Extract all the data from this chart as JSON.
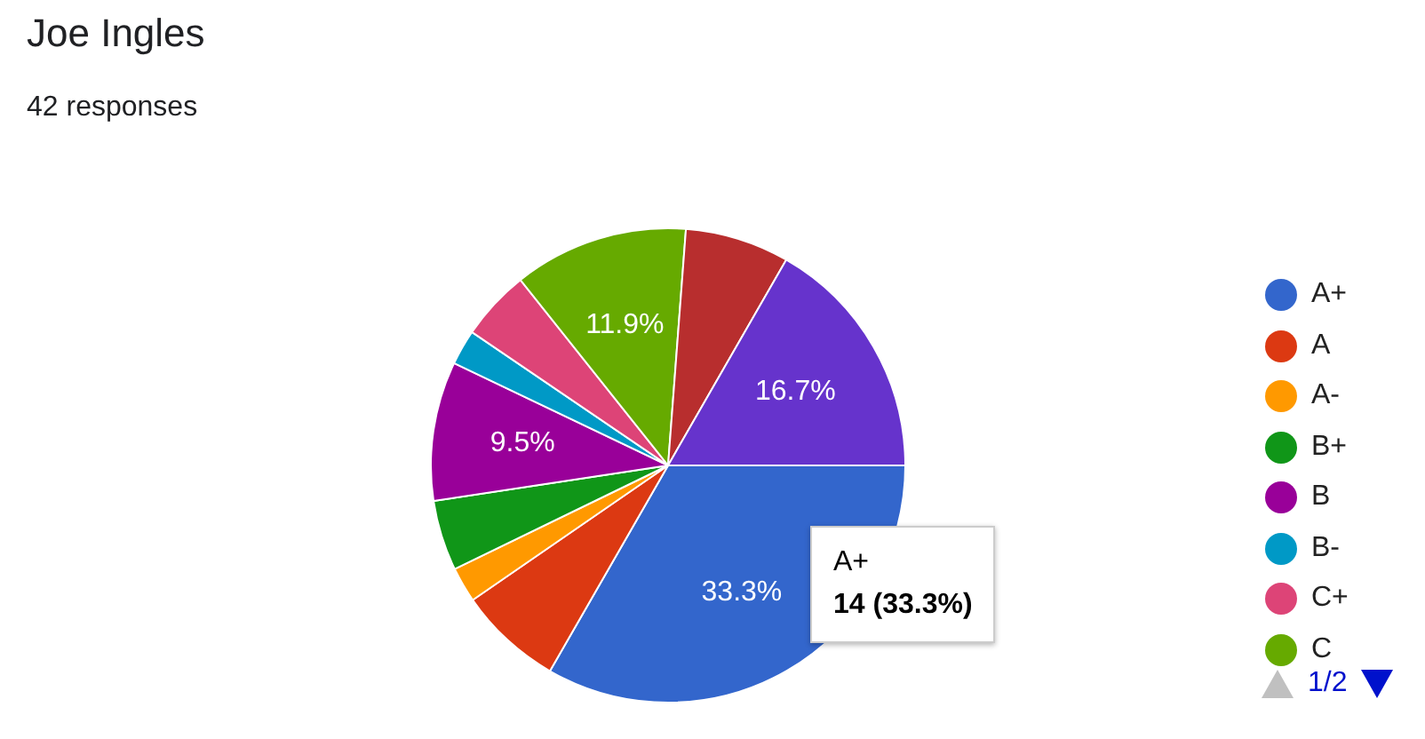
{
  "chart_data": {
    "type": "pie",
    "title": "Joe Ingles",
    "subtitle": "42 responses",
    "categories": [
      "A+",
      "A",
      "A-",
      "B+",
      "B",
      "B-",
      "C+",
      "C",
      null,
      null
    ],
    "values": [
      33.3,
      7.1,
      2.4,
      4.8,
      9.5,
      2.4,
      4.8,
      11.9,
      7.1,
      16.7
    ],
    "colors": [
      "#3366cc",
      "#dc3912",
      "#ff9900",
      "#109618",
      "#990099",
      "#0099c6",
      "#dd4477",
      "#66aa00",
      "#b82e2e",
      "#6633cc"
    ],
    "value_labels": [
      "33.3%",
      null,
      null,
      null,
      "9.5%",
      null,
      null,
      "11.9%",
      null,
      "16.7%"
    ],
    "annotations": [
      "A+",
      "14 (33.3%)",
      "1/2"
    ],
    "legend": "right"
  }
}
